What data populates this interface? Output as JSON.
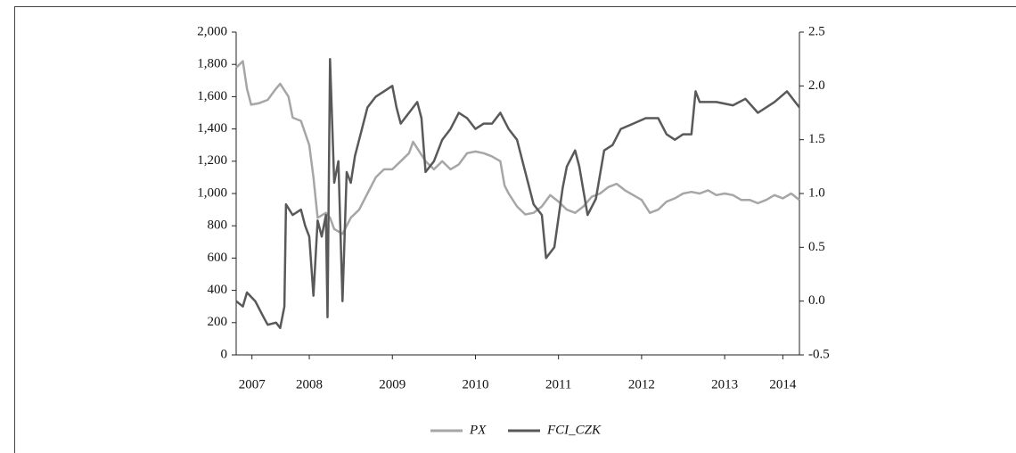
{
  "chart_data": {
    "type": "line",
    "xlim": [
      2007.62,
      2014.4
    ],
    "xticks": [
      {
        "value": 2007.81,
        "label": "2007"
      },
      {
        "value": 2008.5,
        "label": "2008"
      },
      {
        "value": 2009.5,
        "label": "2009"
      },
      {
        "value": 2010.5,
        "label": "2010"
      },
      {
        "value": 2011.5,
        "label": "2011"
      },
      {
        "value": 2012.5,
        "label": "2012"
      },
      {
        "value": 2013.5,
        "label": "2013"
      },
      {
        "value": 2014.2,
        "label": "2014"
      }
    ],
    "ylim": [
      0,
      2000
    ],
    "yticks": [
      0,
      200,
      400,
      600,
      800,
      {
        "value": 1000,
        "label": "1,000"
      },
      {
        "value": 1200,
        "label": "1,200"
      },
      {
        "value": 1400,
        "label": "1,400"
      },
      {
        "value": 1600,
        "label": "1,600"
      },
      {
        "value": 1800,
        "label": "1,800"
      },
      {
        "value": 2000,
        "label": "2,000"
      }
    ],
    "y2lim": [
      -0.5,
      2.5
    ],
    "y2ticks": [
      -0.5,
      {
        "value": 0,
        "label": "0.0"
      },
      0.5,
      {
        "value": 1,
        "label": "1.0"
      },
      1.5,
      {
        "value": 2,
        "label": "2.0"
      },
      2.5
    ],
    "legend": "bottom",
    "series": [
      {
        "name": "PX",
        "color": "#a6a6a6",
        "x": [
          2007.62,
          2007.7,
          2007.75,
          2007.8,
          2007.9,
          2008.0,
          2008.1,
          2008.15,
          2008.25,
          2008.3,
          2008.4,
          2008.5,
          2008.55,
          2008.6,
          2008.7,
          2008.75,
          2008.8,
          2008.9,
          2009.0,
          2009.1,
          2009.2,
          2009.3,
          2009.4,
          2009.5,
          2009.6,
          2009.7,
          2009.75,
          2009.8,
          2009.9,
          2010.0,
          2010.1,
          2010.2,
          2010.3,
          2010.4,
          2010.5,
          2010.6,
          2010.7,
          2010.8,
          2010.85,
          2010.9,
          2011.0,
          2011.1,
          2011.2,
          2011.3,
          2011.4,
          2011.5,
          2011.6,
          2011.7,
          2011.8,
          2011.9,
          2012.0,
          2012.1,
          2012.2,
          2012.3,
          2012.4,
          2012.5,
          2012.6,
          2012.7,
          2012.8,
          2012.9,
          2013.0,
          2013.1,
          2013.2,
          2013.3,
          2013.4,
          2013.5,
          2013.6,
          2013.7,
          2013.8,
          2013.9,
          2014.0,
          2014.1,
          2014.2,
          2014.3,
          2014.4
        ],
        "values": [
          1780,
          1820,
          1650,
          1550,
          1560,
          1580,
          1650,
          1680,
          1600,
          1470,
          1450,
          1300,
          1100,
          850,
          880,
          850,
          780,
          750,
          850,
          900,
          1000,
          1100,
          1150,
          1150,
          1200,
          1250,
          1320,
          1280,
          1200,
          1150,
          1200,
          1150,
          1180,
          1250,
          1260,
          1250,
          1230,
          1200,
          1050,
          1000,
          920,
          870,
          880,
          920,
          990,
          950,
          900,
          880,
          920,
          980,
          1000,
          1040,
          1060,
          1020,
          990,
          960,
          880,
          900,
          950,
          970,
          1000,
          1010,
          1000,
          1020,
          990,
          1000,
          990,
          960,
          960,
          940,
          960,
          990,
          970,
          1000,
          960
        ]
      },
      {
        "name": "FCI_CZK",
        "color": "#595959",
        "axis": "y2",
        "x": [
          2007.62,
          2007.7,
          2007.75,
          2007.85,
          2007.95,
          2008.0,
          2008.1,
          2008.15,
          2008.2,
          2008.22,
          2008.3,
          2008.4,
          2008.45,
          2008.5,
          2008.55,
          2008.6,
          2008.65,
          2008.7,
          2008.72,
          2008.75,
          2008.8,
          2008.85,
          2008.9,
          2008.95,
          2009.0,
          2009.05,
          2009.1,
          2009.2,
          2009.3,
          2009.4,
          2009.5,
          2009.55,
          2009.6,
          2009.7,
          2009.8,
          2009.85,
          2009.9,
          2010.0,
          2010.1,
          2010.2,
          2010.3,
          2010.4,
          2010.5,
          2010.6,
          2010.7,
          2010.8,
          2010.9,
          2011.0,
          2011.1,
          2011.2,
          2011.3,
          2011.35,
          2011.45,
          2011.55,
          2011.6,
          2011.7,
          2011.75,
          2011.85,
          2011.95,
          2012.05,
          2012.15,
          2012.25,
          2012.4,
          2012.55,
          2012.7,
          2012.8,
          2012.9,
          2013.0,
          2013.1,
          2013.15,
          2013.2,
          2013.4,
          2013.6,
          2013.75,
          2013.9,
          2014.1,
          2014.25,
          2014.4
        ],
        "values": [
          0.0,
          -0.05,
          0.08,
          0.0,
          -0.15,
          -0.22,
          -0.2,
          -0.25,
          -0.05,
          0.9,
          0.8,
          0.85,
          0.7,
          0.6,
          0.05,
          0.75,
          0.6,
          0.8,
          -0.15,
          2.25,
          1.1,
          1.3,
          0.0,
          1.2,
          1.1,
          1.35,
          1.5,
          1.8,
          1.9,
          1.95,
          2.0,
          1.8,
          1.65,
          1.75,
          1.85,
          1.7,
          1.2,
          1.3,
          1.5,
          1.6,
          1.75,
          1.7,
          1.6,
          1.65,
          1.65,
          1.75,
          1.6,
          1.5,
          1.2,
          0.9,
          0.8,
          0.4,
          0.5,
          1.05,
          1.25,
          1.4,
          1.25,
          0.8,
          0.95,
          1.4,
          1.45,
          1.6,
          1.65,
          1.7,
          1.7,
          1.55,
          1.5,
          1.55,
          1.55,
          1.95,
          1.85,
          1.85,
          1.82,
          1.88,
          1.75,
          1.85,
          1.95,
          1.8
        ]
      }
    ]
  }
}
